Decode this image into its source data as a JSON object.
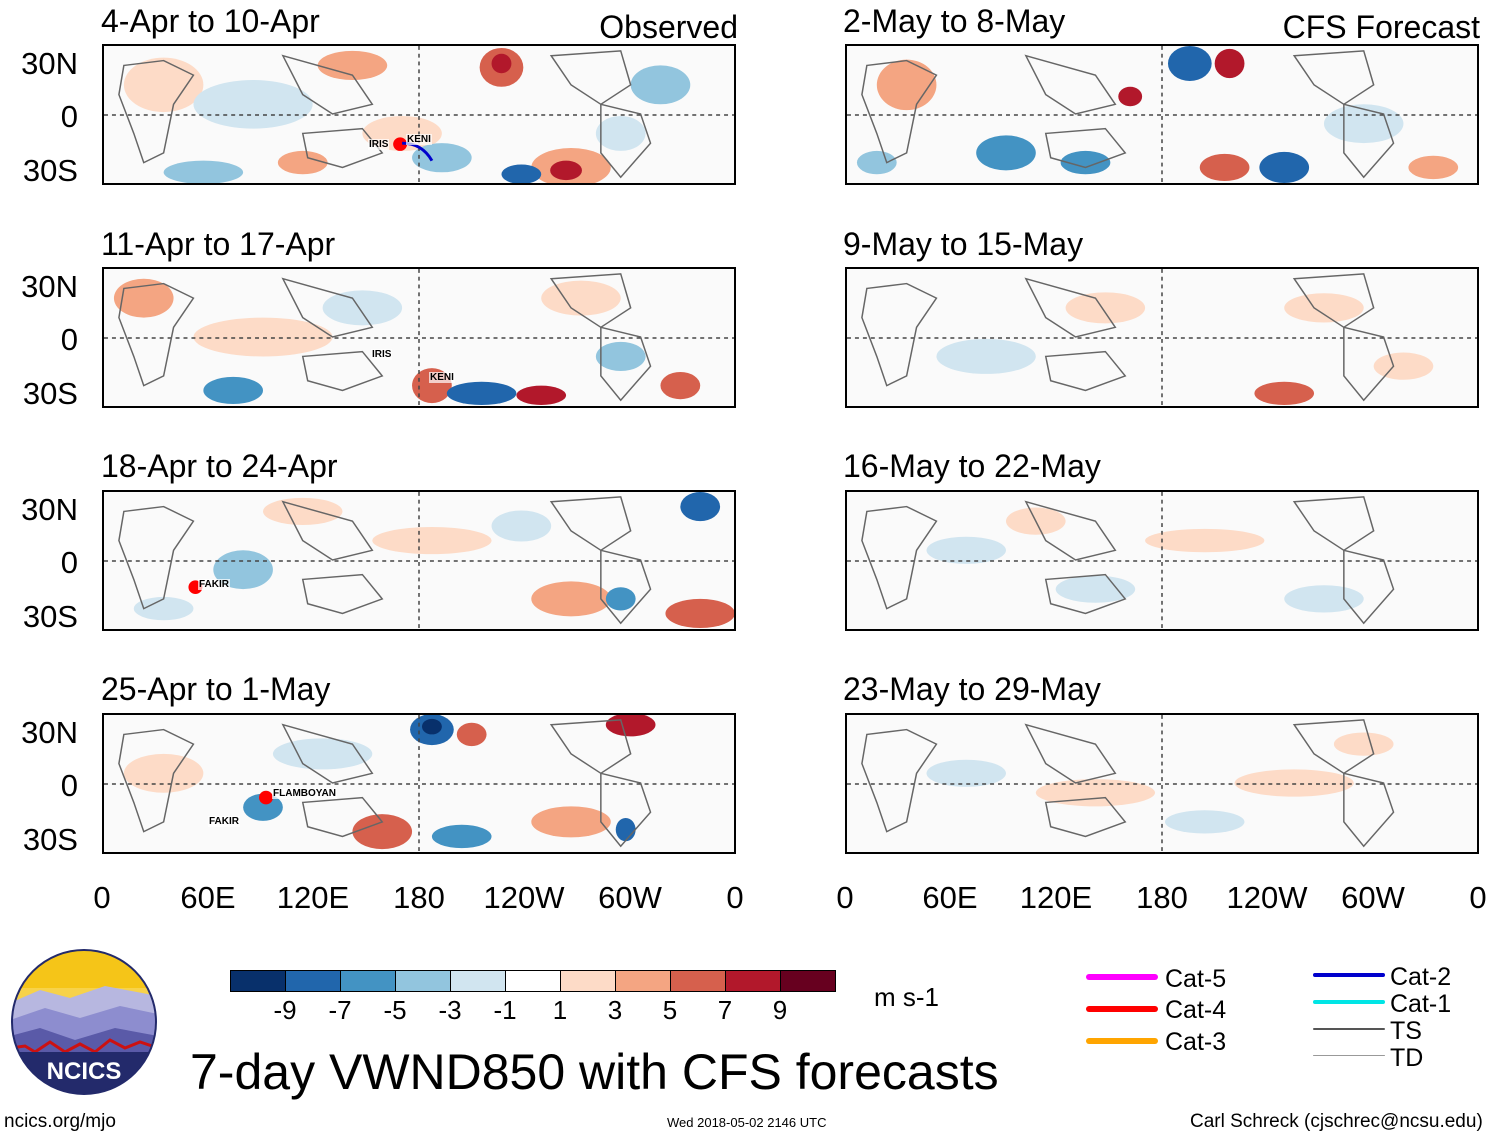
{
  "chart_data": [
    {
      "type": "heatmap",
      "title": "7-day VWND850 with CFS forecasts",
      "units": "m s-1",
      "colorbar": {
        "tick_labels": [
          "-9",
          "-7",
          "-5",
          "-3",
          "-1",
          "1",
          "3",
          "5",
          "7",
          "9"
        ],
        "colors": [
          "#08306b",
          "#2166ac",
          "#4393c3",
          "#92c5de",
          "#d1e5f0",
          "#ffffff",
          "#fddbc7",
          "#f4a582",
          "#d6604d",
          "#b2182b",
          "#67001f"
        ]
      },
      "x_ticks": [
        "0",
        "60E",
        "120E",
        "180",
        "120W",
        "60W",
        "0"
      ],
      "y_ticks": [
        "30N",
        "0",
        "30S"
      ],
      "observed_label": "Observed",
      "forecast_label": "CFS Forecast",
      "observed_panels": [
        {
          "title": "4-Apr to 10-Apr",
          "storms": [
            "IRIS",
            "KENI"
          ]
        },
        {
          "title": "11-Apr to 17-Apr",
          "storms": [
            "IRIS",
            "KENI"
          ]
        },
        {
          "title": "18-Apr to 24-Apr",
          "storms": [
            "FAKIR"
          ]
        },
        {
          "title": "25-Apr to 1-May",
          "storms": [
            "FLAMBOYAN",
            "FAKIR"
          ]
        }
      ],
      "forecast_panels": [
        {
          "title": "2-May to 8-May"
        },
        {
          "title": "9-May to 15-May"
        },
        {
          "title": "16-May to 22-May"
        },
        {
          "title": "23-May to 29-May"
        }
      ]
    }
  ],
  "legend": {
    "items": [
      {
        "label": "Cat-5",
        "color": "#ff00ff"
      },
      {
        "label": "Cat-4",
        "color": "#ff0000"
      },
      {
        "label": "Cat-3",
        "color": "#ffa500"
      },
      {
        "label": "Cat-2",
        "color": "#0000cc"
      },
      {
        "label": "Cat-1",
        "color": "#00e5e5"
      },
      {
        "label": "TS",
        "color": "#555555"
      },
      {
        "label": "TD",
        "color": "#999999"
      }
    ]
  },
  "logo": {
    "text": "NCICS"
  },
  "footer": {
    "url": "ncics.org/mjo",
    "timestamp": "Wed 2018-05-02 2146 UTC",
    "author": "Carl Schreck (cjschrec@ncsu.edu)"
  }
}
